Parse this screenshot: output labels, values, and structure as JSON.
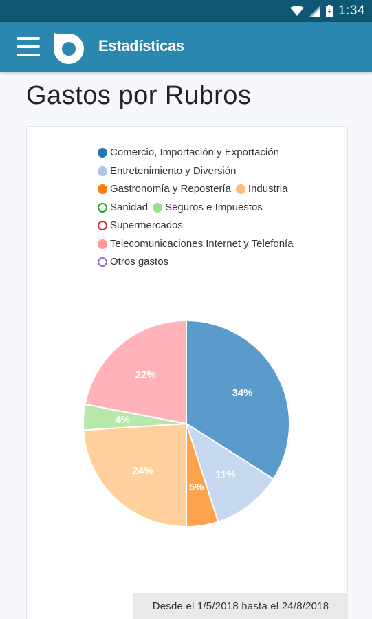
{
  "status_bar": {
    "time": "1:34",
    "icons": [
      "wifi-icon",
      "signal-icon",
      "battery-icon"
    ]
  },
  "app_bar": {
    "title": "Estadísticas",
    "menu_icon": "hamburger-menu-icon",
    "logo_icon": "app-logo-icon"
  },
  "page": {
    "title": "Gastos por Rubros",
    "date_range": "Desde el 1/5/2018 hasta el 24/8/2018"
  },
  "colors": {
    "status_bar": "#0f5874",
    "app_bar": "#2b87ad"
  },
  "chart_data": {
    "type": "pie",
    "legend": [
      {
        "name": "Comercio, Importación y Exportación",
        "color": "#1f77b4",
        "style": "filled"
      },
      {
        "name": "Entretenimiento y Diversión",
        "color": "#aec7e8",
        "style": "filled"
      },
      {
        "name": "Gastronomía y Repostería",
        "color": "#ff7f0e",
        "style": "filled"
      },
      {
        "name": "Industria",
        "color": "#ffbb78",
        "style": "filled"
      },
      {
        "name": "Sanidad",
        "color": "#2ca02c",
        "style": "hollow"
      },
      {
        "name": "Seguros e Impuestos",
        "color": "#98df8a",
        "style": "filled"
      },
      {
        "name": "Supermercados",
        "color": "#d62728",
        "style": "hollow"
      },
      {
        "name": "Telecomunicaciones Internet y Telefonía",
        "color": "#ff9896",
        "style": "filled"
      },
      {
        "name": "Otros gastos",
        "color": "#9467bd",
        "style": "hollow"
      }
    ],
    "slices": [
      {
        "name": "Comercio, Importación y Exportación",
        "value": 34,
        "label": "34%",
        "color": "#5b9bcc"
      },
      {
        "name": "Entretenimiento y Diversión",
        "value": 11,
        "label": "11%",
        "color": "#c6d8ef"
      },
      {
        "name": "Gastronomía y Repostería",
        "value": 5,
        "label": "5%",
        "color": "#ffa24c"
      },
      {
        "name": "Industria",
        "value": 24,
        "label": "24%",
        "color": "#ffcf9c"
      },
      {
        "name": "Seguros e Impuestos",
        "value": 4,
        "label": "4%",
        "color": "#b5e8aa"
      },
      {
        "name": "Telecomunicaciones Internet y Telefonía",
        "value": 22,
        "label": "22%",
        "color": "#ffb2b7"
      }
    ]
  }
}
